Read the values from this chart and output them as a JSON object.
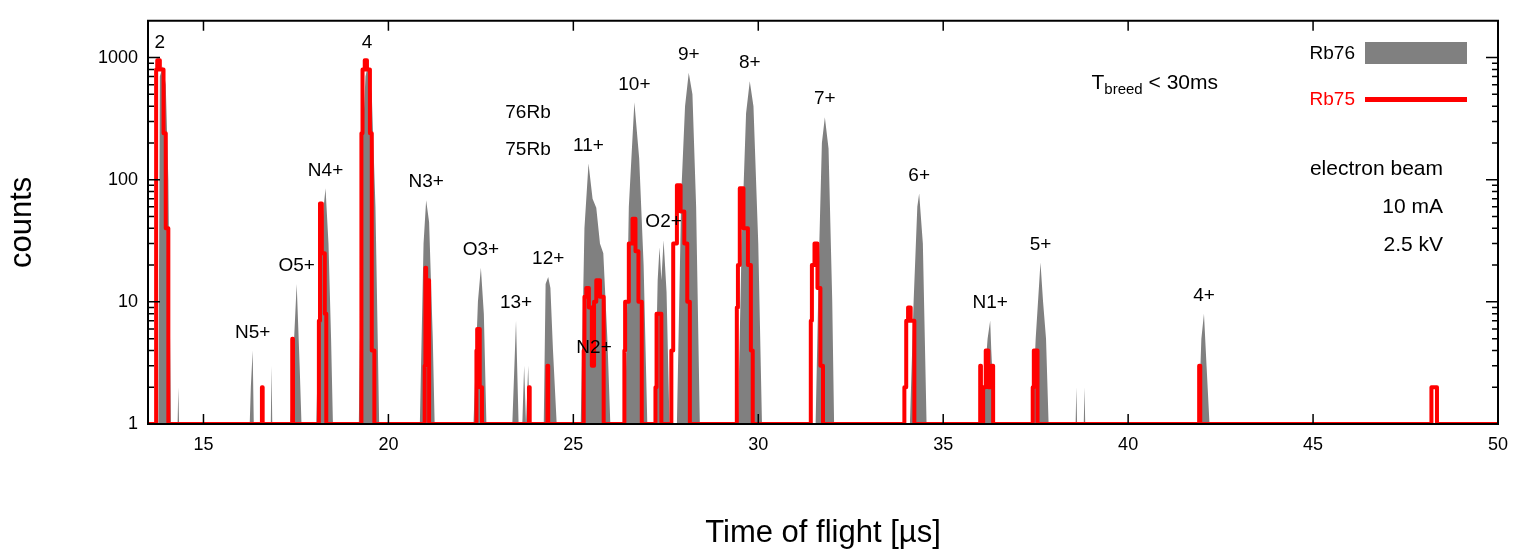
{
  "chart_data": {
    "type": "area",
    "xlabel": "Time of flight [µs]",
    "ylabel": "counts",
    "log": "y",
    "grid": false,
    "legend": "top right",
    "xlim": [
      13.5,
      50
    ],
    "xticks": [
      15,
      20,
      25,
      30,
      35,
      40,
      45,
      50
    ],
    "ylim": [
      1,
      2000
    ],
    "yticks": [
      1,
      {
        "value": 2,
        "label": null
      },
      {
        "value": 3,
        "label": null
      },
      {
        "value": 4,
        "label": null
      },
      {
        "value": 5,
        "label": null
      },
      {
        "value": 6,
        "label": null
      },
      {
        "value": 7,
        "label": null
      },
      {
        "value": 8,
        "label": null
      },
      {
        "value": 9,
        "label": null
      },
      10,
      {
        "value": 20,
        "label": null
      },
      {
        "value": 30,
        "label": null
      },
      {
        "value": 40,
        "label": null
      },
      {
        "value": 50,
        "label": null
      },
      {
        "value": 60,
        "label": null
      },
      {
        "value": 70,
        "label": null
      },
      {
        "value": 80,
        "label": null
      },
      {
        "value": 90,
        "label": null
      },
      100,
      {
        "value": 200,
        "label": null
      },
      {
        "value": 300,
        "label": null
      },
      {
        "value": 400,
        "label": null
      },
      {
        "value": 500,
        "label": null
      },
      {
        "value": 600,
        "label": null
      },
      {
        "value": 700,
        "label": null
      },
      {
        "value": 800,
        "label": null
      },
      {
        "value": 900,
        "label": null
      },
      1000
    ],
    "series": [
      {
        "name": "Rb76",
        "color": "#808080",
        "x": [
          13.5,
          13.78,
          13.82,
          13.9,
          13.98,
          14.05,
          14.12,
          14.3,
          14.32,
          14.34,
          16.25,
          16.28,
          16.33,
          16.36,
          16.82,
          16.84,
          16.86,
          17.35,
          17.45,
          17.52,
          17.6,
          17.65,
          18.05,
          18.15,
          18.25,
          18.3,
          18.38,
          18.45,
          18.5,
          19.2,
          19.3,
          19.38,
          19.45,
          19.55,
          19.65,
          19.75,
          20.85,
          20.95,
          21.02,
          21.1,
          21.2,
          21.25,
          22.3,
          22.42,
          22.5,
          22.58,
          22.65,
          23.35,
          23.45,
          23.52,
          23.62,
          23.67,
          23.72,
          23.78,
          23.82,
          24.2,
          24.25,
          24.32,
          24.38,
          24.45,
          24.55,
          25.2,
          25.3,
          25.41,
          25.52,
          25.62,
          25.72,
          25.81,
          25.92,
          26.0,
          26.4,
          26.5,
          26.65,
          26.78,
          26.9,
          27.0,
          27.2,
          27.28,
          27.33,
          27.38,
          27.44,
          27.52,
          27.6,
          27.8,
          27.92,
          28.02,
          28.12,
          28.22,
          28.32,
          28.42,
          29.45,
          29.55,
          29.67,
          29.77,
          29.87,
          30.0,
          30.1,
          31.55,
          31.65,
          31.72,
          31.8,
          31.9,
          32.0,
          32.05,
          34.1,
          34.2,
          34.3,
          34.35,
          34.45,
          34.55,
          36.0,
          36.1,
          36.2,
          36.27,
          36.3,
          36.35,
          36.4,
          37.4,
          37.5,
          37.6,
          37.63,
          37.7,
          37.78,
          37.85,
          38.58,
          38.6,
          38.62,
          38.8,
          38.82,
          38.84,
          41.9,
          41.98,
          42.05,
          42.12,
          42.2,
          50
        ],
        "values": [
          1,
          1,
          700,
          850,
          600,
          100,
          1,
          1,
          2,
          1,
          1,
          2,
          4,
          1,
          1,
          3,
          1,
          1,
          5,
          14,
          3,
          1,
          1,
          20,
          60,
          85,
          30,
          5,
          1,
          1,
          200,
          700,
          880,
          500,
          60,
          1,
          1,
          30,
          68,
          45,
          5,
          1,
          1,
          10,
          19,
          8,
          1,
          1,
          7,
          1,
          1,
          3,
          1,
          3,
          1,
          1,
          14,
          16,
          13,
          4,
          1,
          1,
          40,
          136,
          70,
          59,
          30,
          25,
          5,
          1,
          1,
          60,
          430,
          150,
          20,
          1,
          1,
          15,
          28,
          15,
          32,
          12,
          1,
          1,
          80,
          400,
          750,
          500,
          60,
          1,
          1,
          30,
          350,
          640,
          400,
          30,
          1,
          1,
          30,
          200,
          325,
          180,
          10,
          1,
          1,
          10,
          60,
          77,
          30,
          1,
          1,
          2,
          5,
          7,
          4,
          2,
          1,
          1,
          5,
          15,
          21,
          10,
          5,
          1,
          1,
          2,
          1,
          1,
          2,
          1,
          1,
          5,
          8,
          3,
          1,
          1
        ]
      },
      {
        "name": "Rb75",
        "type": "step",
        "color": "#ff0000",
        "x": [
          13.5,
          13.72,
          13.75,
          13.82,
          13.92,
          13.98,
          14.05,
          14.12,
          16.58,
          16.6,
          16.68,
          17.4,
          17.42,
          17.55,
          18.12,
          18.15,
          18.2,
          18.28,
          18.32,
          18.38,
          19.27,
          19.3,
          19.36,
          19.42,
          19.5,
          19.55,
          19.62,
          19.7,
          20.98,
          21.0,
          21.02,
          21.1,
          21.15,
          22.38,
          22.4,
          22.47,
          22.53,
          22.58,
          23.8,
          23.82,
          23.88,
          24.3,
          24.32,
          24.38,
          25.28,
          25.3,
          25.35,
          25.42,
          25.5,
          25.56,
          25.62,
          25.72,
          25.82,
          25.88,
          26.38,
          26.4,
          26.5,
          26.6,
          26.68,
          26.76,
          26.85,
          26.92,
          27.22,
          27.25,
          27.38,
          27.48,
          27.65,
          27.7,
          27.8,
          27.9,
          28.0,
          28.08,
          28.15,
          28.2,
          29.42,
          29.45,
          29.5,
          29.6,
          29.72,
          29.8,
          29.85,
          29.9,
          31.42,
          31.45,
          31.52,
          31.6,
          31.68,
          31.75,
          31.8,
          33.95,
          34.0,
          34.05,
          34.12,
          34.22,
          34.28,
          36.0,
          36.02,
          36.08,
          36.15,
          36.22,
          36.3,
          36.35,
          36.4,
          37.42,
          37.45,
          37.55,
          37.6,
          41.92,
          41.95,
          42.0,
          48.2,
          48.22,
          48.35,
          48.4,
          50
        ],
        "values": [
          1,
          1,
          800,
          950,
          800,
          240,
          40,
          1,
          1,
          2,
          1,
          1,
          5,
          1,
          1,
          7,
          64,
          25,
          8,
          1,
          1,
          240,
          800,
          950,
          800,
          240,
          4,
          1,
          1,
          3,
          19,
          15,
          1,
          1,
          4,
          6,
          2,
          1,
          1,
          2,
          1,
          1,
          3,
          1,
          1,
          4,
          11,
          13,
          9,
          3,
          10,
          15,
          11,
          1,
          1,
          4,
          10,
          30,
          48,
          26,
          10,
          1,
          1,
          2,
          8,
          1,
          1,
          4,
          30,
          90,
          55,
          30,
          10,
          1,
          1,
          9,
          20,
          85,
          40,
          20,
          4,
          1,
          1,
          7,
          20,
          30,
          13,
          3,
          1,
          1,
          2,
          7,
          9,
          7,
          1,
          1,
          3,
          1,
          2,
          4,
          2,
          3,
          1,
          1,
          2,
          4,
          1,
          1,
          3,
          1,
          1,
          2,
          2,
          1,
          1
        ]
      }
    ],
    "annotations": [
      "T$_{breed}$ < 30ms",
      "electron beam",
      "10 mA",
      "2.5 kV",
      "76Rb",
      "75Rb",
      {
        "text": "2",
        "x": 13.82,
        "y": 950
      },
      {
        "text": "4",
        "x": 19.42,
        "y": 950
      },
      {
        "text": "N5+",
        "x": 16.33,
        "y": 4
      },
      {
        "text": "O5+",
        "x": 17.52,
        "y": 14
      },
      {
        "text": "N4+",
        "x": 18.3,
        "y": 85
      },
      {
        "text": "N3+",
        "x": 21.02,
        "y": 68
      },
      {
        "text": "O3+",
        "x": 22.5,
        "y": 19
      },
      {
        "text": "13+",
        "x": 23.45,
        "y": 7
      },
      {
        "text": "11+",
        "x": 25.41,
        "y": 136
      },
      {
        "text": "12+",
        "x": 24.32,
        "y": 16
      },
      {
        "text": "N2+",
        "x": 25.56,
        "y": 3
      },
      {
        "text": "O2+",
        "x": 27.44,
        "y": 32
      },
      {
        "text": "10+",
        "x": 26.65,
        "y": 430
      },
      {
        "text": "9+",
        "x": 28.12,
        "y": 750
      },
      {
        "text": "8+",
        "x": 29.77,
        "y": 640
      },
      {
        "text": "7+",
        "x": 31.8,
        "y": 325
      },
      {
        "text": "6+",
        "x": 34.35,
        "y": 77
      },
      {
        "text": "N1+",
        "x": 36.27,
        "y": 7
      },
      {
        "text": "5+",
        "x": 37.63,
        "y": 21
      },
      {
        "text": "4+",
        "x": 42.05,
        "y": 8
      }
    ]
  }
}
